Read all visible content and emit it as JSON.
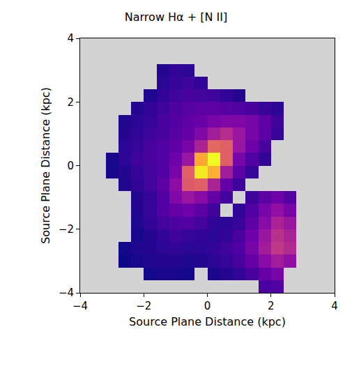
{
  "chart_data": {
    "type": "heatmap",
    "title": "Narrow Hα + [N II]",
    "x_label": "Source Plane Distance (kpc)",
    "y_label": "Source Plane Distance (kpc)",
    "x": [
      -3.8,
      -3.4,
      -3.0,
      -2.6,
      -2.2,
      -1.8,
      -1.4,
      -1.0,
      -0.6,
      -0.2,
      0.2,
      0.6,
      1.0,
      1.4,
      1.8,
      2.2,
      2.6,
      3.0,
      3.4,
      3.8
    ],
    "y": [
      -3.8,
      -3.4,
      -3.0,
      -2.6,
      -2.2,
      -1.8,
      -1.4,
      -1.0,
      -0.6,
      -0.2,
      0.2,
      0.6,
      1.0,
      1.4,
      1.8,
      2.2,
      2.6,
      3.0,
      3.4,
      3.8
    ],
    "cells": [
      [
        null,
        null,
        null,
        null,
        null,
        null,
        null,
        null,
        null,
        null,
        null,
        null,
        null,
        null,
        0.2,
        0.22,
        null,
        null,
        null,
        null
      ],
      [
        null,
        null,
        null,
        null,
        null,
        0.11,
        0.12,
        0.12,
        0.11,
        null,
        0.12,
        0.14,
        0.16,
        0.2,
        0.26,
        0.3,
        null,
        null,
        null,
        null
      ],
      [
        null,
        null,
        null,
        0.1,
        0.12,
        0.13,
        0.14,
        0.14,
        0.13,
        0.14,
        0.15,
        0.17,
        0.2,
        0.26,
        0.34,
        0.4,
        0.36,
        null,
        null,
        null
      ],
      [
        null,
        null,
        null,
        0.11,
        0.13,
        0.14,
        0.15,
        0.16,
        0.15,
        0.15,
        0.16,
        0.18,
        0.22,
        0.3,
        0.4,
        0.48,
        0.44,
        null,
        null,
        null
      ],
      [
        null,
        null,
        null,
        null,
        0.12,
        0.14,
        0.16,
        0.18,
        0.17,
        0.16,
        0.15,
        0.16,
        0.2,
        0.28,
        0.38,
        0.46,
        0.42,
        null,
        null,
        null
      ],
      [
        null,
        null,
        null,
        null,
        0.13,
        0.16,
        0.19,
        0.21,
        0.22,
        0.19,
        0.16,
        0.15,
        0.17,
        0.24,
        0.34,
        0.42,
        0.38,
        null,
        null,
        null
      ],
      [
        null,
        null,
        null,
        null,
        0.14,
        0.17,
        0.22,
        0.26,
        0.28,
        0.24,
        0.18,
        null,
        0.16,
        0.22,
        0.3,
        0.36,
        0.3,
        null,
        null,
        null
      ],
      [
        null,
        null,
        null,
        null,
        0.14,
        0.17,
        0.22,
        0.32,
        0.38,
        0.34,
        0.26,
        0.19,
        null,
        0.18,
        0.24,
        0.28,
        0.22,
        null,
        null,
        null
      ],
      [
        null,
        null,
        null,
        0.13,
        0.16,
        0.19,
        0.24,
        0.35,
        0.58,
        0.6,
        0.42,
        0.26,
        0.18,
        null,
        null,
        null,
        null,
        null,
        null,
        null
      ],
      [
        null,
        null,
        0.12,
        0.14,
        0.17,
        0.19,
        0.22,
        0.3,
        0.6,
        0.92,
        0.8,
        0.4,
        0.24,
        0.17,
        null,
        null,
        null,
        null,
        null,
        null
      ],
      [
        null,
        null,
        0.12,
        0.15,
        0.18,
        0.2,
        0.22,
        0.28,
        0.38,
        0.78,
        0.95,
        0.6,
        0.3,
        0.22,
        0.16,
        null,
        null,
        null,
        null,
        null
      ],
      [
        null,
        null,
        null,
        0.15,
        0.17,
        0.2,
        0.22,
        0.25,
        0.3,
        0.42,
        0.62,
        0.6,
        0.38,
        0.28,
        0.2,
        null,
        null,
        null,
        null,
        null
      ],
      [
        null,
        null,
        null,
        0.14,
        0.16,
        0.18,
        0.2,
        0.23,
        0.26,
        0.32,
        0.4,
        0.45,
        0.38,
        0.3,
        0.24,
        0.17,
        null,
        null,
        null,
        null
      ],
      [
        null,
        null,
        null,
        0.13,
        0.15,
        0.17,
        0.2,
        0.22,
        0.25,
        0.27,
        0.3,
        0.32,
        0.32,
        0.3,
        0.25,
        0.18,
        null,
        null,
        null,
        null
      ],
      [
        null,
        null,
        null,
        null,
        0.14,
        0.16,
        0.18,
        0.21,
        0.23,
        0.24,
        0.24,
        0.23,
        0.22,
        0.2,
        0.17,
        0.15,
        null,
        null,
        null,
        null
      ],
      [
        null,
        null,
        null,
        null,
        null,
        0.13,
        0.16,
        0.18,
        0.2,
        0.19,
        0.18,
        0.16,
        0.14,
        null,
        null,
        null,
        null,
        null,
        null,
        null
      ],
      [
        null,
        null,
        null,
        null,
        null,
        null,
        0.15,
        0.17,
        0.18,
        0.16,
        null,
        null,
        null,
        null,
        null,
        null,
        null,
        null,
        null,
        null
      ],
      [
        null,
        null,
        null,
        null,
        null,
        null,
        0.14,
        0.16,
        0.15,
        null,
        null,
        null,
        null,
        null,
        null,
        null,
        null,
        null,
        null,
        null
      ],
      [
        null,
        null,
        null,
        null,
        null,
        null,
        null,
        null,
        null,
        null,
        null,
        null,
        null,
        null,
        null,
        null,
        null,
        null,
        null,
        null
      ],
      [
        null,
        null,
        null,
        null,
        null,
        null,
        null,
        null,
        null,
        null,
        null,
        null,
        null,
        null,
        null,
        null,
        null,
        null,
        null,
        null
      ]
    ],
    "zlim": [
      0.1,
      0.95
    ],
    "color": "plasma",
    "xlim": [
      -4,
      4
    ],
    "ylim": [
      -4,
      4
    ],
    "xticks": [
      {
        "value": -4,
        "label": "−4"
      },
      {
        "value": -2,
        "label": "−2"
      },
      0,
      2,
      4
    ],
    "yticks": [
      {
        "value": -4,
        "label": "−4"
      },
      {
        "value": -2,
        "label": "−2"
      },
      0,
      2,
      4
    ],
    "grid": false
  }
}
